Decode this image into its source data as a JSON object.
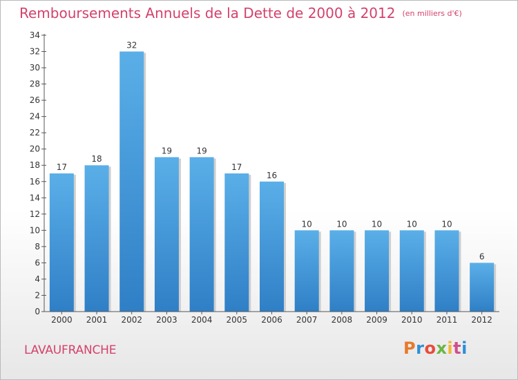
{
  "title": "Remboursements Annuels de la Dette de 2000 à 2012",
  "unit": "(en milliers d'€)",
  "city": "LAVAUFRANCHE",
  "brand": {
    "letters": [
      "P",
      "r",
      "o",
      "x",
      "i",
      "t",
      "i"
    ],
    "colors": [
      "#e8792b",
      "#2d8fd8",
      "#e84b3c",
      "#6ab542",
      "#f2b632",
      "#d14f8b",
      "#2d8fd8"
    ]
  },
  "colors": {
    "bar_top": "#5aafe8",
    "bar_bottom": "#2f7fc6",
    "title": "#d4416b"
  },
  "chart_data": {
    "type": "bar",
    "categories": [
      "2000",
      "2001",
      "2002",
      "2003",
      "2004",
      "2005",
      "2006",
      "2007",
      "2008",
      "2009",
      "2010",
      "2011",
      "2012"
    ],
    "values": [
      17,
      18,
      32,
      19,
      19,
      17,
      16,
      10,
      10,
      10,
      10,
      10,
      6
    ],
    "data_labels": [
      "17",
      "18",
      "32",
      "19",
      "19",
      "17",
      "16",
      "10",
      "10",
      "10",
      "10",
      "10",
      "6"
    ],
    "ylim": [
      0,
      34
    ],
    "yticks": [
      0,
      2,
      4,
      6,
      8,
      10,
      12,
      14,
      16,
      18,
      20,
      22,
      24,
      26,
      28,
      30,
      32,
      34
    ],
    "grid": false,
    "title": "Remboursements Annuels de la Dette de 2000 à 2012"
  }
}
